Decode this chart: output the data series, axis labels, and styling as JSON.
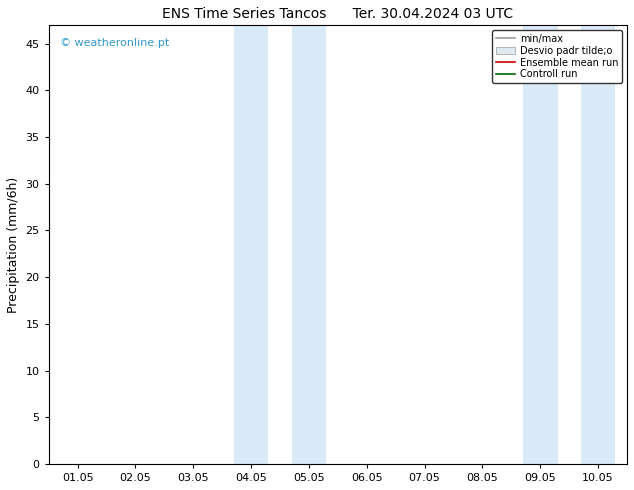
{
  "title": "ENS Time Series Tancos      Ter. 30.04.2024 03 UTC",
  "ylabel": "Precipitation (mm/6h)",
  "ylim": [
    0,
    47
  ],
  "yticks": [
    0,
    5,
    10,
    15,
    20,
    25,
    30,
    35,
    40,
    45
  ],
  "x_labels": [
    "01.05",
    "02.05",
    "03.05",
    "04.05",
    "05.05",
    "06.05",
    "07.05",
    "08.05",
    "09.05",
    "10.05"
  ],
  "x_values": [
    0,
    1,
    2,
    3,
    4,
    5,
    6,
    7,
    8,
    9
  ],
  "xlim": [
    -0.5,
    9.5
  ],
  "shaded_bands": [
    [
      2.7,
      3.3
    ],
    [
      3.7,
      4.3
    ],
    [
      7.7,
      8.3
    ],
    [
      8.7,
      9.3
    ]
  ],
  "shade_color": "#daeaf8",
  "background_color": "#ffffff",
  "watermark": "© weatheronline.pt",
  "watermark_color": "#3399cc",
  "legend_labels": [
    "min/max",
    "Desvio padr tilde;o",
    "Ensemble mean run",
    "Controll run"
  ],
  "ensemble_mean_color": "#cc0000",
  "control_run_color": "#006600",
  "minmax_color": "#999999",
  "std_fill_color": "#cccccc",
  "title_fontsize": 10,
  "ylabel_fontsize": 9,
  "tick_fontsize": 8,
  "legend_fontsize": 7
}
